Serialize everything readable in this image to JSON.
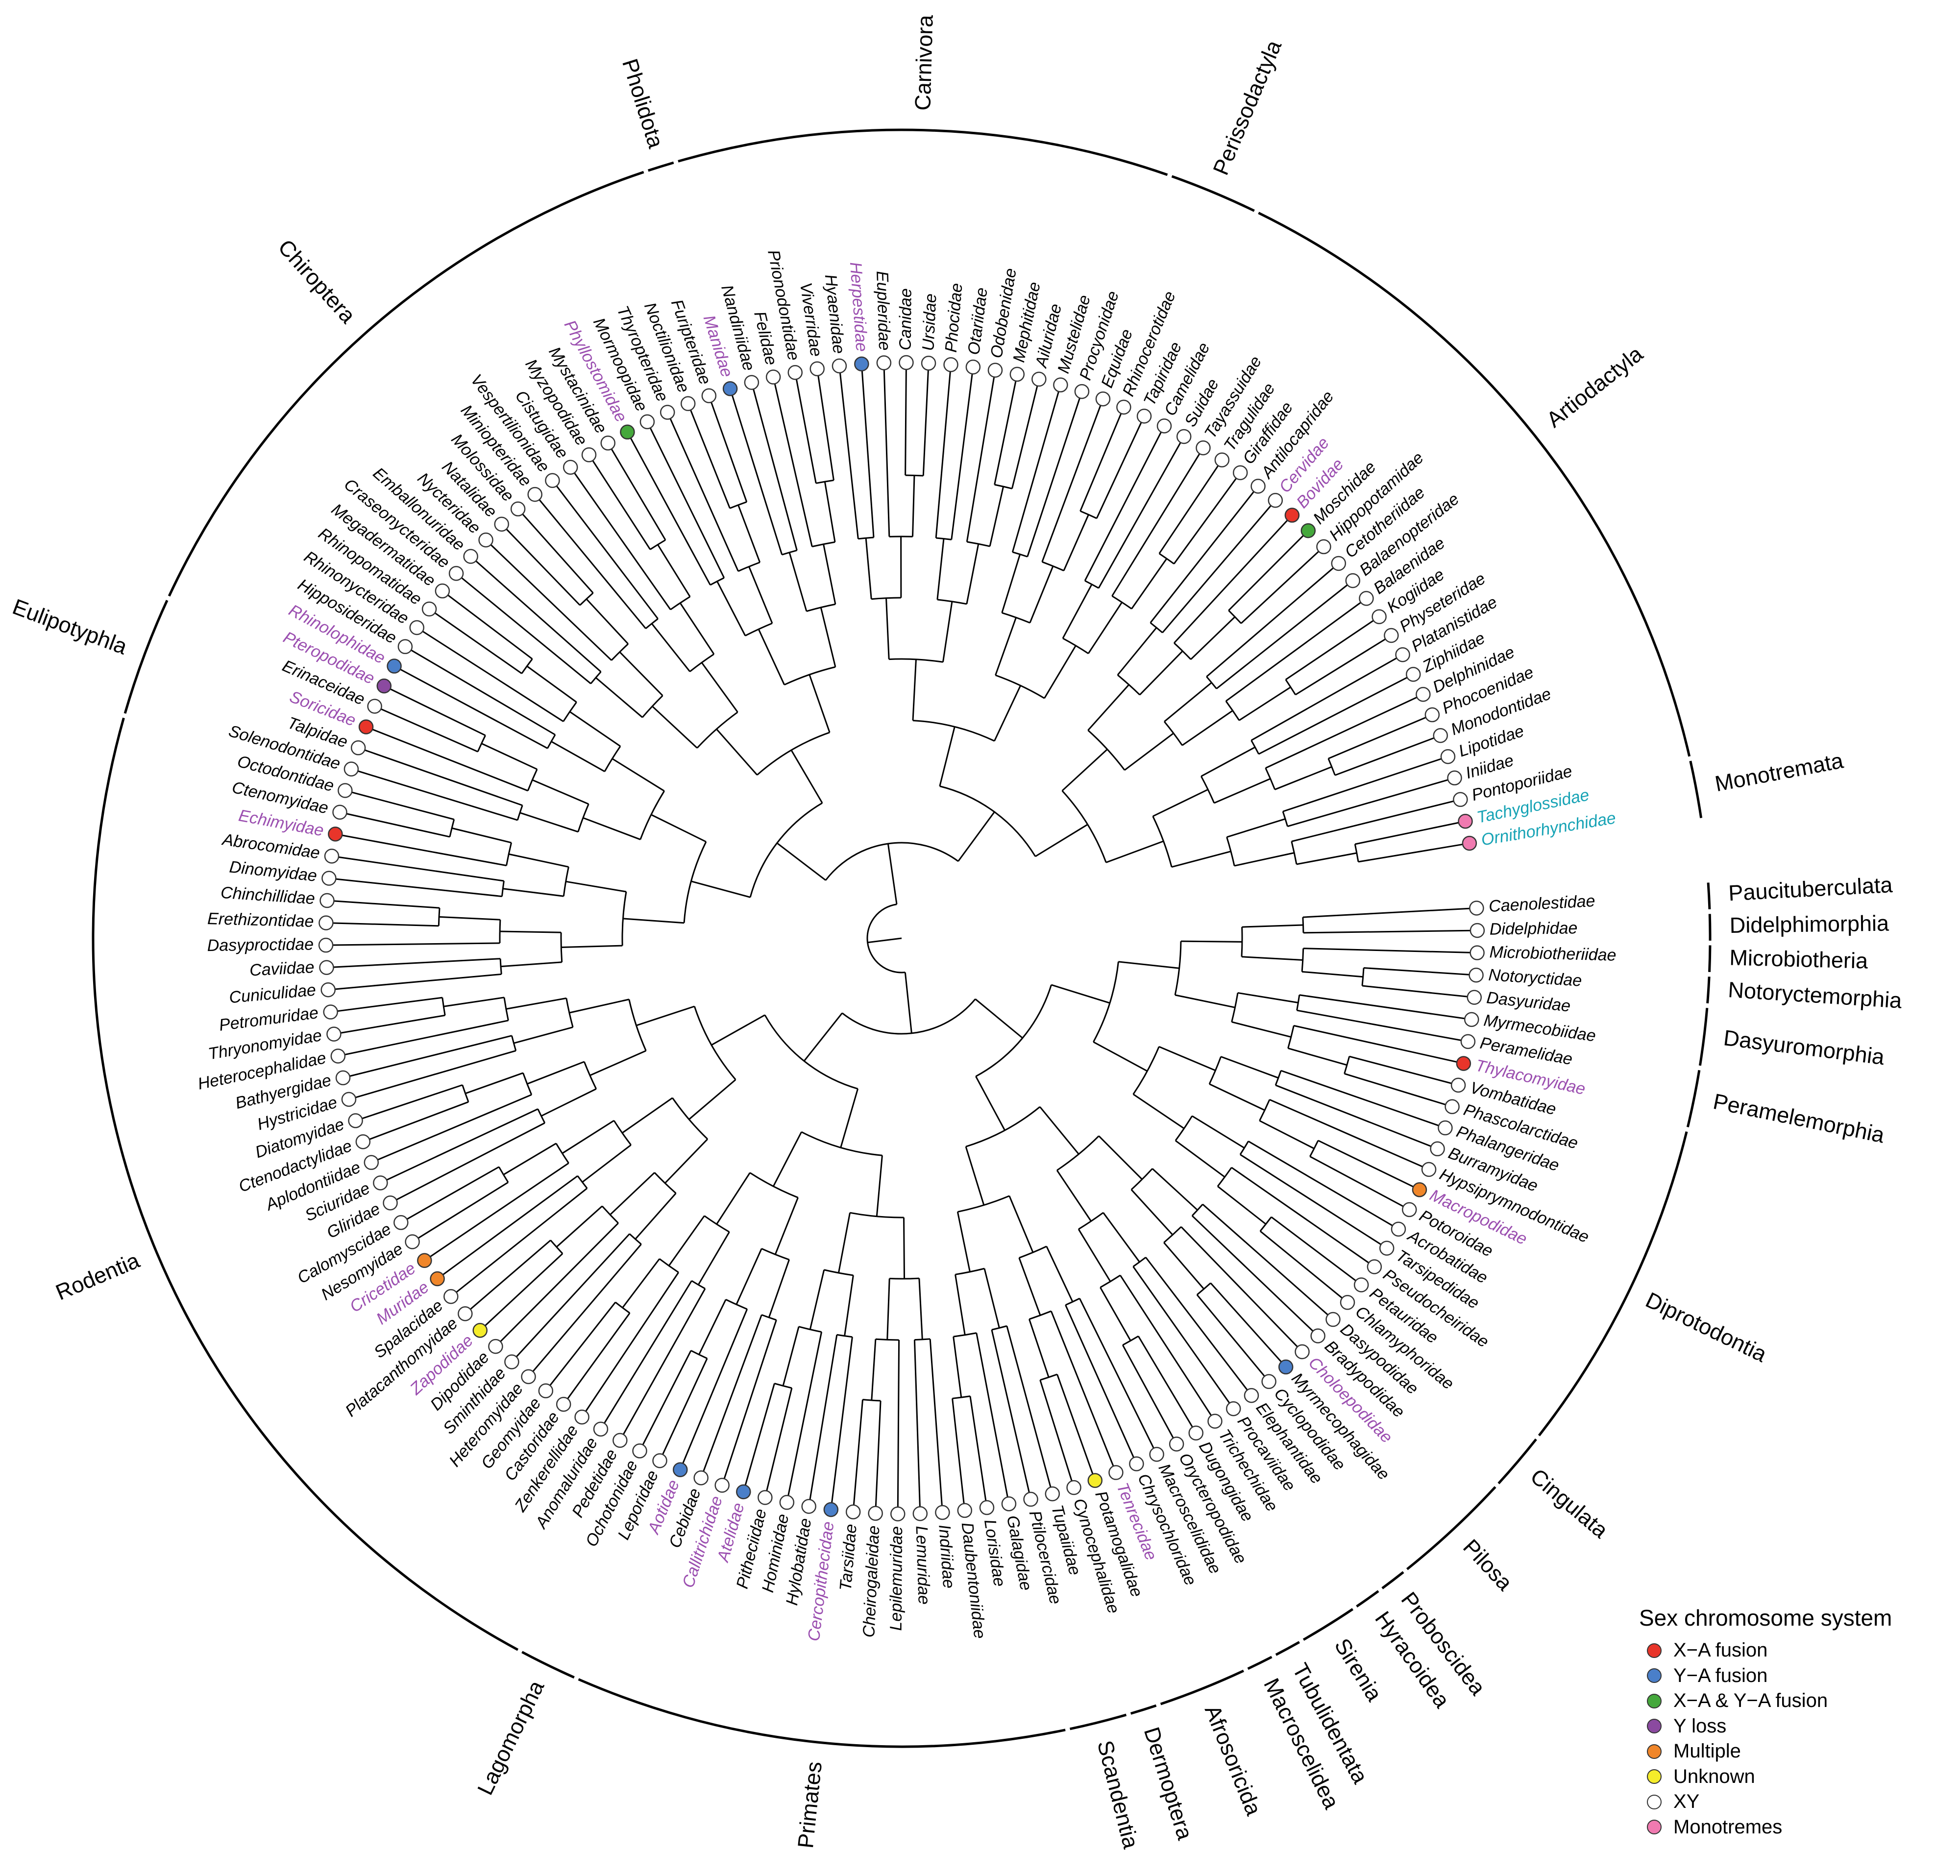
{
  "colors": {
    "X-A fusion": "#e8352a",
    "Y-A fusion": "#4a7fc9",
    "X-A & Y-A fusion": "#45a83c",
    "Y loss": "#8b4aa0",
    "Multiple": "#f0862a",
    "Unknown": "#f5ec2a",
    "XY": "#ffffff",
    "Monotremes": "#f07ab0",
    "highlight_text": "#9b4fb0",
    "monotreme_text": "#17a3b5",
    "default_text": "#000000"
  },
  "leaves": [
    {
      "name": "Ornithorhynchidae",
      "state": "Monotremes",
      "text": "monotreme"
    },
    {
      "name": "Tachyglossidae",
      "state": "Monotremes",
      "text": "monotreme"
    },
    {
      "name": "Pontoporiidae",
      "state": "XY"
    },
    {
      "name": "Iniidae",
      "state": "XY"
    },
    {
      "name": "Lipotidae",
      "state": "XY"
    },
    {
      "name": "Monodontidae",
      "state": "XY"
    },
    {
      "name": "Phocoenidae",
      "state": "XY"
    },
    {
      "name": "Delphinidae",
      "state": "XY"
    },
    {
      "name": "Ziphiidae",
      "state": "XY"
    },
    {
      "name": "Platanistidae",
      "state": "XY"
    },
    {
      "name": "Physeteridae",
      "state": "XY"
    },
    {
      "name": "Kogiidae",
      "state": "XY"
    },
    {
      "name": "Balaenidae",
      "state": "XY"
    },
    {
      "name": "Balaenopteridae",
      "state": "XY"
    },
    {
      "name": "Cetotheriidae",
      "state": "XY"
    },
    {
      "name": "Hippopotamidae",
      "state": "XY"
    },
    {
      "name": "Moschidae",
      "state": "X-A & Y-A fusion"
    },
    {
      "name": "Bovidae",
      "state": "X-A fusion",
      "text": "highlight"
    },
    {
      "name": "Cervidae",
      "state": "XY",
      "text": "highlight"
    },
    {
      "name": "Antilocapridae",
      "state": "XY"
    },
    {
      "name": "Giraffidae",
      "state": "XY"
    },
    {
      "name": "Tragulidae",
      "state": "XY"
    },
    {
      "name": "Tayassuidae",
      "state": "XY"
    },
    {
      "name": "Suidae",
      "state": "XY"
    },
    {
      "name": "Camelidae",
      "state": "XY"
    },
    {
      "name": "Tapiridae",
      "state": "XY"
    },
    {
      "name": "Rhinocerotidae",
      "state": "XY"
    },
    {
      "name": "Equidae",
      "state": "XY"
    },
    {
      "name": "Procyonidae",
      "state": "XY"
    },
    {
      "name": "Mustelidae",
      "state": "XY"
    },
    {
      "name": "Ailuridae",
      "state": "XY"
    },
    {
      "name": "Mephitidae",
      "state": "XY"
    },
    {
      "name": "Odobenidae",
      "state": "XY"
    },
    {
      "name": "Otariidae",
      "state": "XY"
    },
    {
      "name": "Phocidae",
      "state": "XY"
    },
    {
      "name": "Ursidae",
      "state": "XY"
    },
    {
      "name": "Canidae",
      "state": "XY"
    },
    {
      "name": "Eupleridae",
      "state": "XY"
    },
    {
      "name": "Herpestidae",
      "state": "Y-A fusion",
      "text": "highlight"
    },
    {
      "name": "Hyaenidae",
      "state": "XY"
    },
    {
      "name": "Viverridae",
      "state": "XY"
    },
    {
      "name": "Prionodontidae",
      "state": "XY"
    },
    {
      "name": "Felidae",
      "state": "XY"
    },
    {
      "name": "Nandiniidae",
      "state": "XY"
    },
    {
      "name": "Manidae",
      "state": "Y-A fusion",
      "text": "highlight"
    },
    {
      "name": "Furipteridae",
      "state": "XY"
    },
    {
      "name": "Noctilionidae",
      "state": "XY"
    },
    {
      "name": "Thyropteridae",
      "state": "XY"
    },
    {
      "name": "Mormoopidae",
      "state": "XY"
    },
    {
      "name": "Phyllostomidae",
      "state": "X-A & Y-A fusion",
      "text": "highlight"
    },
    {
      "name": "Mystacinidae",
      "state": "XY"
    },
    {
      "name": "Myzopodidae",
      "state": "XY"
    },
    {
      "name": "Cistugidae",
      "state": "XY"
    },
    {
      "name": "Vespertilionidae",
      "state": "XY"
    },
    {
      "name": "Miniopteridae",
      "state": "XY"
    },
    {
      "name": "Molossidae",
      "state": "XY"
    },
    {
      "name": "Natalidae",
      "state": "XY"
    },
    {
      "name": "Nycteridae",
      "state": "XY"
    },
    {
      "name": "Emballonuridae",
      "state": "XY"
    },
    {
      "name": "Craseonycteridae",
      "state": "XY"
    },
    {
      "name": "Megadermatidae",
      "state": "XY"
    },
    {
      "name": "Rhinopomatidae",
      "state": "XY"
    },
    {
      "name": "Rhinonycteridae",
      "state": "XY"
    },
    {
      "name": "Hipposideridae",
      "state": "XY"
    },
    {
      "name": "Rhinolophidae",
      "state": "Y-A fusion",
      "text": "highlight"
    },
    {
      "name": "Pteropodidae",
      "state": "Y loss",
      "text": "highlight"
    },
    {
      "name": "Erinaceidae",
      "state": "XY"
    },
    {
      "name": "Soricidae",
      "state": "X-A fusion",
      "text": "highlight"
    },
    {
      "name": "Talpidae",
      "state": "XY"
    },
    {
      "name": "Solenodontidae",
      "state": "XY"
    },
    {
      "name": "Octodontidae",
      "state": "XY"
    },
    {
      "name": "Ctenomyidae",
      "state": "XY"
    },
    {
      "name": "Echimyidae",
      "state": "X-A fusion",
      "text": "highlight"
    },
    {
      "name": "Abrocomidae",
      "state": "XY"
    },
    {
      "name": "Dinomyidae",
      "state": "XY"
    },
    {
      "name": "Chinchillidae",
      "state": "XY"
    },
    {
      "name": "Erethizontidae",
      "state": "XY"
    },
    {
      "name": "Dasyproctidae",
      "state": "XY"
    },
    {
      "name": "Caviidae",
      "state": "XY"
    },
    {
      "name": "Cuniculidae",
      "state": "XY"
    },
    {
      "name": "Petromuridae",
      "state": "XY"
    },
    {
      "name": "Thryonomyidae",
      "state": "XY"
    },
    {
      "name": "Heterocephalidae",
      "state": "XY"
    },
    {
      "name": "Bathyergidae",
      "state": "XY"
    },
    {
      "name": "Hystricidae",
      "state": "XY"
    },
    {
      "name": "Diatomyidae",
      "state": "XY"
    },
    {
      "name": "Ctenodactylidae",
      "state": "XY"
    },
    {
      "name": "Aplodontiidae",
      "state": "XY"
    },
    {
      "name": "Sciuridae",
      "state": "XY"
    },
    {
      "name": "Gliridae",
      "state": "XY"
    },
    {
      "name": "Calomyscidae",
      "state": "XY"
    },
    {
      "name": "Nesomyidae",
      "state": "XY"
    },
    {
      "name": "Cricetidae",
      "state": "Multiple",
      "text": "highlight"
    },
    {
      "name": "Muridae",
      "state": "Multiple",
      "text": "highlight"
    },
    {
      "name": "Spalacidae",
      "state": "XY"
    },
    {
      "name": "Platacanthomyidae",
      "state": "XY"
    },
    {
      "name": "Zapodidae",
      "state": "Unknown",
      "text": "highlight"
    },
    {
      "name": "Dipodidae",
      "state": "XY"
    },
    {
      "name": "Sminthidae",
      "state": "XY"
    },
    {
      "name": "Heteromyidae",
      "state": "XY"
    },
    {
      "name": "Geomyidae",
      "state": "XY"
    },
    {
      "name": "Castoridae",
      "state": "XY"
    },
    {
      "name": "Zenkerellidae",
      "state": "XY"
    },
    {
      "name": "Anomaluridae",
      "state": "XY"
    },
    {
      "name": "Pedetidae",
      "state": "XY"
    },
    {
      "name": "Ochotonidae",
      "state": "XY"
    },
    {
      "name": "Leporidae",
      "state": "XY"
    },
    {
      "name": "Aotidae",
      "state": "Y-A fusion",
      "text": "highlight"
    },
    {
      "name": "Cebidae",
      "state": "XY"
    },
    {
      "name": "Callitrichidae",
      "state": "XY",
      "text": "highlight"
    },
    {
      "name": "Atelidae",
      "state": "Y-A fusion",
      "text": "highlight"
    },
    {
      "name": "Pitheciidae",
      "state": "XY"
    },
    {
      "name": "Hominidae",
      "state": "XY"
    },
    {
      "name": "Hylobatidae",
      "state": "XY"
    },
    {
      "name": "Cercopithecidae",
      "state": "Y-A fusion",
      "text": "highlight"
    },
    {
      "name": "Tarsiidae",
      "state": "XY"
    },
    {
      "name": "Cheirogaleidae",
      "state": "XY"
    },
    {
      "name": "Lepilemuridae",
      "state": "XY"
    },
    {
      "name": "Lemuridae",
      "state": "XY"
    },
    {
      "name": "Indriidae",
      "state": "XY"
    },
    {
      "name": "Daubentoniidae",
      "state": "XY"
    },
    {
      "name": "Lorisidae",
      "state": "XY"
    },
    {
      "name": "Galagidae",
      "state": "XY"
    },
    {
      "name": "Ptilocercidae",
      "state": "XY"
    },
    {
      "name": "Tupaiidae",
      "state": "XY"
    },
    {
      "name": "Cynocephalidae",
      "state": "XY"
    },
    {
      "name": "Potamogalidae",
      "state": "Unknown"
    },
    {
      "name": "Tenrecidae",
      "state": "XY",
      "text": "highlight"
    },
    {
      "name": "Chrysochloridae",
      "state": "XY"
    },
    {
      "name": "Macroscelididae",
      "state": "XY"
    },
    {
      "name": "Orycteropodidae",
      "state": "XY"
    },
    {
      "name": "Dugongidae",
      "state": "XY"
    },
    {
      "name": "Trichechidae",
      "state": "XY"
    },
    {
      "name": "Procaviidae",
      "state": "XY"
    },
    {
      "name": "Elephantidae",
      "state": "XY"
    },
    {
      "name": "Cyclopodidae",
      "state": "XY"
    },
    {
      "name": "Myrmecophagidae",
      "state": "Y-A fusion"
    },
    {
      "name": "Choloepodidae",
      "state": "XY",
      "text": "highlight"
    },
    {
      "name": "Bradypodidae",
      "state": "XY"
    },
    {
      "name": "Dasypodidae",
      "state": "XY"
    },
    {
      "name": "Chlamyphoridae",
      "state": "XY"
    },
    {
      "name": "Petauridae",
      "state": "XY"
    },
    {
      "name": "Pseudocheiridae",
      "state": "XY"
    },
    {
      "name": "Tarsipedidae",
      "state": "XY"
    },
    {
      "name": "Acrobatidae",
      "state": "XY"
    },
    {
      "name": "Potoroidae",
      "state": "XY"
    },
    {
      "name": "Macropodidae",
      "state": "Multiple",
      "text": "highlight"
    },
    {
      "name": "Hypsiprymnodontidae",
      "state": "XY"
    },
    {
      "name": "Burramyidae",
      "state": "XY"
    },
    {
      "name": "Phalangeridae",
      "state": "XY"
    },
    {
      "name": "Phascolarctidae",
      "state": "XY"
    },
    {
      "name": "Vombatidae",
      "state": "XY"
    },
    {
      "name": "Thylacomyidae",
      "state": "X-A fusion",
      "text": "highlight"
    },
    {
      "name": "Peramelidae",
      "state": "XY"
    },
    {
      "name": "Myrmecobiidae",
      "state": "XY"
    },
    {
      "name": "Dasyuridae",
      "state": "XY"
    },
    {
      "name": "Notoryctidae",
      "state": "XY"
    },
    {
      "name": "Microbiotheriidae",
      "state": "XY"
    },
    {
      "name": "Didelphidae",
      "state": "XY"
    },
    {
      "name": "Caenolestidae",
      "state": "XY"
    }
  ],
  "orders": [
    {
      "name": "Monotremata",
      "first": "Ornithorhynchidae",
      "last": "Tachyglossidae"
    },
    {
      "name": "Artiodactyla",
      "first": "Pontoporiidae",
      "last": "Camelidae"
    },
    {
      "name": "Perissodactyla",
      "first": "Tapiridae",
      "last": "Equidae"
    },
    {
      "name": "Carnivora",
      "first": "Procyonidae",
      "last": "Nandiniidae"
    },
    {
      "name": "Pholidota",
      "first": "Manidae",
      "last": "Manidae"
    },
    {
      "name": "Chiroptera",
      "first": "Furipteridae",
      "last": "Pteropodidae"
    },
    {
      "name": "Eulipotyphla",
      "first": "Erinaceidae",
      "last": "Solenodontidae"
    },
    {
      "name": "Rodentia",
      "first": "Octodontidae",
      "last": "Pedetidae"
    },
    {
      "name": "Lagomorpha",
      "first": "Ochotonidae",
      "last": "Leporidae"
    },
    {
      "name": "Primates",
      "first": "Aotidae",
      "last": "Galagidae"
    },
    {
      "name": "Scandentia",
      "first": "Ptilocercidae",
      "last": "Tupaiidae"
    },
    {
      "name": "Dermoptera",
      "first": "Cynocephalidae",
      "last": "Cynocephalidae"
    },
    {
      "name": "Afrosoricida",
      "first": "Potamogalidae",
      "last": "Chrysochloridae"
    },
    {
      "name": "Macroscelidea",
      "first": "Macroscelididae",
      "last": "Macroscelididae"
    },
    {
      "name": "Tubulidentata",
      "first": "Orycteropodidae",
      "last": "Orycteropodidae"
    },
    {
      "name": "Sirenia",
      "first": "Dugongidae",
      "last": "Trichechidae"
    },
    {
      "name": "Hyracoidea",
      "first": "Procaviidae",
      "last": "Procaviidae"
    },
    {
      "name": "Proboscidea",
      "first": "Elephantidae",
      "last": "Elephantidae"
    },
    {
      "name": "Pilosa",
      "first": "Cyclopodidae",
      "last": "Bradypodidae"
    },
    {
      "name": "Cingulata",
      "first": "Dasypodidae",
      "last": "Chlamyphoridae"
    },
    {
      "name": "Diprotodontia",
      "first": "Petauridae",
      "last": "Vombatidae"
    },
    {
      "name": "Peramelemorphia",
      "first": "Thylacomyidae",
      "last": "Peramelidae"
    },
    {
      "name": "Dasyuromorphia",
      "first": "Myrmecobiidae",
      "last": "Dasyuridae"
    },
    {
      "name": "Notoryctemorphia",
      "first": "Notoryctidae",
      "last": "Notoryctidae"
    },
    {
      "name": "Microbiotheria",
      "first": "Microbiotheriidae",
      "last": "Microbiotheriidae"
    },
    {
      "name": "Didelphimorphia",
      "first": "Didelphidae",
      "last": "Didelphidae"
    },
    {
      "name": "Paucituberculata",
      "first": "Caenolestidae",
      "last": "Caenolestidae"
    }
  ],
  "legend": {
    "title": "Sex chromosome system",
    "items": [
      {
        "label": "X−A fusion",
        "key": "X-A fusion"
      },
      {
        "label": "Y−A fusion",
        "key": "Y-A fusion"
      },
      {
        "label": "X−A & Y−A fusion",
        "key": "X-A & Y-A fusion"
      },
      {
        "label": "Y loss",
        "key": "Y loss"
      },
      {
        "label": "Multiple",
        "key": "Multiple"
      },
      {
        "label": "Unknown",
        "key": "Unknown"
      },
      {
        "label": "XY",
        "key": "XY"
      },
      {
        "label": "Monotremes",
        "key": "Monotremes"
      }
    ]
  }
}
